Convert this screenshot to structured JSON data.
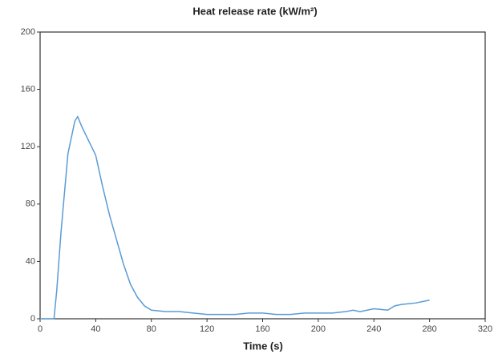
{
  "chart_data": {
    "type": "line",
    "title": "Heat release rate (kW/m²)",
    "x_label": "Time (s)",
    "series": [
      {
        "color": "#5b9bd5",
        "x": [
          0,
          5,
          10,
          12,
          15,
          20,
          25,
          27,
          30,
          35,
          40,
          45,
          50,
          55,
          60,
          65,
          70,
          75,
          80,
          90,
          100,
          110,
          120,
          130,
          140,
          150,
          160,
          170,
          180,
          190,
          200,
          210,
          220,
          225,
          230,
          240,
          250,
          255,
          260,
          270,
          280
        ],
        "values": [
          0,
          0,
          0,
          20,
          60,
          115,
          138,
          141,
          134,
          124,
          114,
          92,
          72,
          55,
          38,
          24,
          15,
          9,
          6,
          5,
          5,
          4,
          3,
          3,
          3,
          4,
          4,
          3,
          3,
          4,
          4,
          4,
          5,
          6,
          5,
          7,
          6,
          9,
          10,
          11,
          13
        ]
      }
    ],
    "xlim": [
      0,
      320
    ],
    "xticks": [
      0,
      40,
      80,
      120,
      160,
      200,
      240,
      280,
      320
    ],
    "ylim": [
      0,
      200
    ],
    "yticks": [
      0,
      40,
      80,
      120,
      160,
      200
    ]
  }
}
